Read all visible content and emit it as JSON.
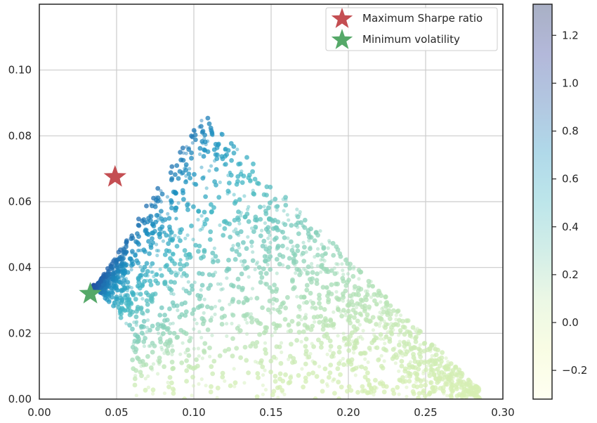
{
  "chart_data": {
    "type": "scatter",
    "title": "",
    "xlabel": "",
    "ylabel": "",
    "xlim": [
      0.0,
      0.3
    ],
    "ylim": [
      0.0,
      0.12
    ],
    "x_ticks": [
      "0.00",
      "0.05",
      "0.10",
      "0.15",
      "0.20",
      "0.25",
      "0.30"
    ],
    "y_ticks": [
      "0.00",
      "0.02",
      "0.04",
      "0.06",
      "0.08",
      "0.10"
    ],
    "grid": true,
    "legend_position": "top-right",
    "scatter_cloud": {
      "description_points": "Monte Carlo portfolios colored by Sharpe ratio",
      "x_range": [
        0.03,
        0.29
      ],
      "y_range": [
        0.0,
        0.1
      ],
      "colormap": "YlGnBu"
    },
    "markers": [
      {
        "name": "Maximum Sharpe ratio",
        "x": 0.049,
        "y": 0.0675,
        "color": "#c44e52",
        "symbol": "star"
      },
      {
        "name": "Minimum volatility",
        "x": 0.033,
        "y": 0.032,
        "color": "#55a868",
        "symbol": "star"
      }
    ],
    "colorbar": {
      "range": [
        -0.32,
        1.33
      ],
      "ticks": [
        "−0.2",
        "0.0",
        "0.2",
        "0.4",
        "0.6",
        "0.8",
        "1.0",
        "1.2"
      ],
      "tick_values": [
        -0.2,
        0.0,
        0.2,
        0.4,
        0.6,
        0.8,
        1.0,
        1.2
      ]
    }
  }
}
